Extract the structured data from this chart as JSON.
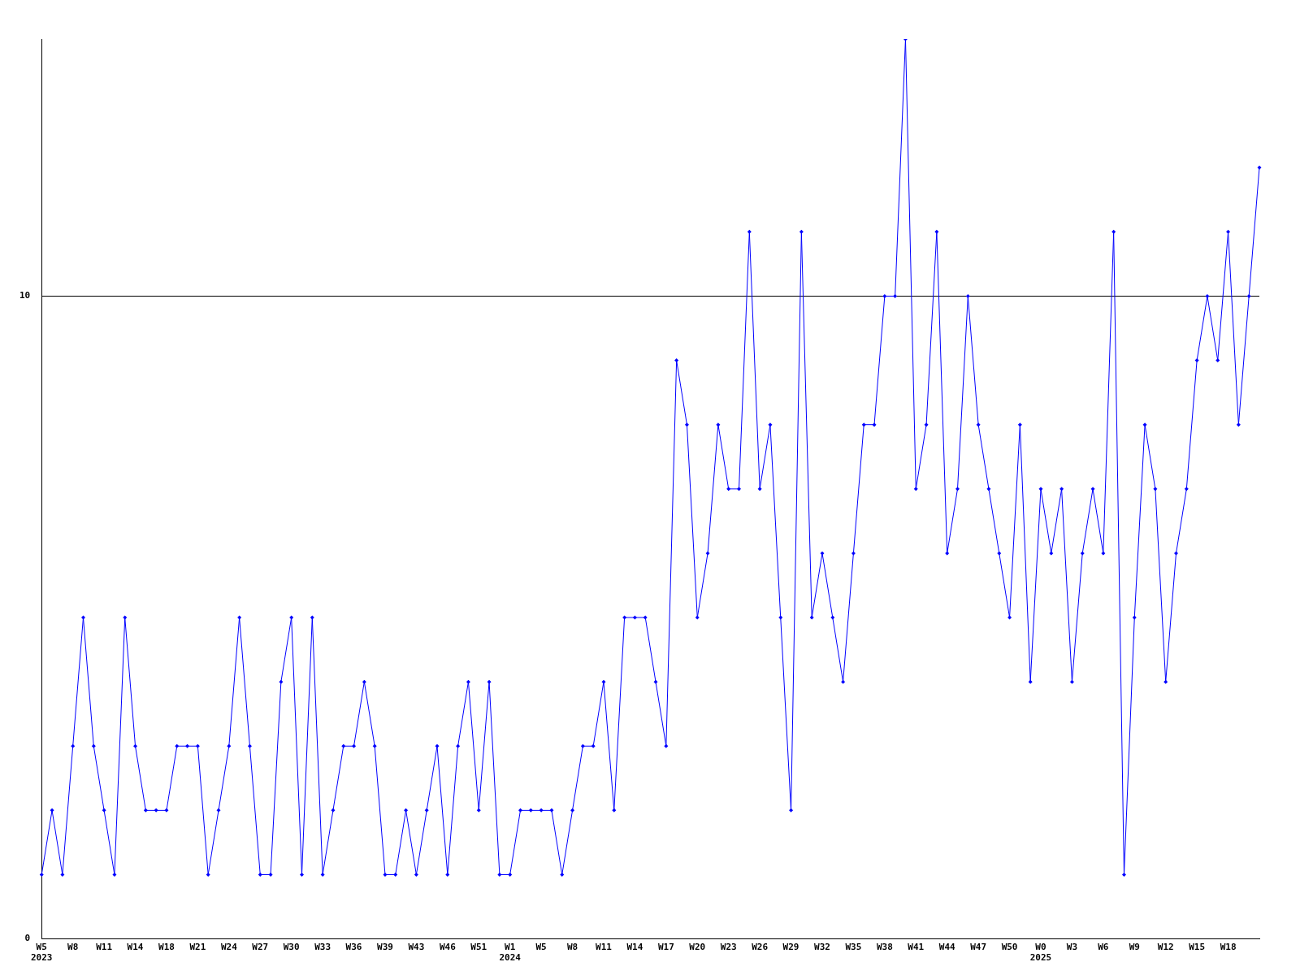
{
  "chart_data": {
    "type": "line",
    "categories": [
      "W5\n2023",
      null,
      null,
      "W8",
      null,
      null,
      "W11",
      null,
      null,
      "W14",
      null,
      null,
      "W18",
      null,
      null,
      "W21",
      null,
      null,
      "W24",
      null,
      null,
      "W27",
      null,
      null,
      "W30",
      null,
      null,
      "W33",
      null,
      null,
      "W36",
      null,
      null,
      "W39",
      null,
      null,
      "W43",
      null,
      null,
      "W46",
      null,
      null,
      "W51",
      null,
      null,
      "W1\n2024",
      null,
      null,
      "W5",
      null,
      null,
      "W8",
      null,
      null,
      "W11",
      null,
      null,
      "W14",
      null,
      null,
      "W17",
      null,
      null,
      "W20",
      null,
      null,
      "W23",
      null,
      null,
      "W26",
      null,
      null,
      "W29",
      null,
      null,
      "W32",
      null,
      null,
      "W35",
      null,
      null,
      "W38",
      null,
      null,
      "W41",
      null,
      null,
      "W44",
      null,
      null,
      "W47",
      null,
      null,
      "W50",
      null,
      null,
      "W0\n2025",
      null,
      null,
      "W3",
      null,
      null,
      "W6",
      null,
      null,
      "W9",
      null,
      null,
      "W12",
      null,
      null,
      "W15",
      null,
      null,
      "W18",
      null,
      null,
      null
    ],
    "series": [
      {
        "color": "#0000ff",
        "values": [
          1,
          2,
          1,
          3,
          5,
          3,
          2,
          1,
          5,
          3,
          2,
          2,
          2,
          3,
          3,
          3,
          1,
          2,
          3,
          5,
          3,
          1,
          1,
          4,
          5,
          1,
          5,
          1,
          2,
          3,
          3,
          4,
          3,
          1,
          1,
          2,
          1,
          2,
          3,
          1,
          3,
          4,
          2,
          4,
          1,
          1,
          2,
          2,
          2,
          2,
          1,
          2,
          3,
          3,
          4,
          2,
          5,
          5,
          5,
          4,
          3,
          9,
          8,
          5,
          6,
          8,
          7,
          7,
          11,
          7,
          8,
          5,
          2,
          11,
          5,
          6,
          5,
          4,
          6,
          8,
          8,
          10,
          10,
          14,
          7,
          8,
          11,
          6,
          7,
          10,
          8,
          7,
          6,
          5,
          8,
          4,
          7,
          6,
          7,
          4,
          6,
          7,
          6,
          11,
          1,
          5,
          8,
          7,
          4,
          6,
          7,
          9,
          10,
          9,
          11,
          8,
          10,
          12
        ]
      }
    ],
    "ylim": [
      0,
      14
    ],
    "yticks": [
      0,
      10
    ],
    "grid": "y",
    "marker": "diamond",
    "line_style": "solid",
    "legend": false
  }
}
